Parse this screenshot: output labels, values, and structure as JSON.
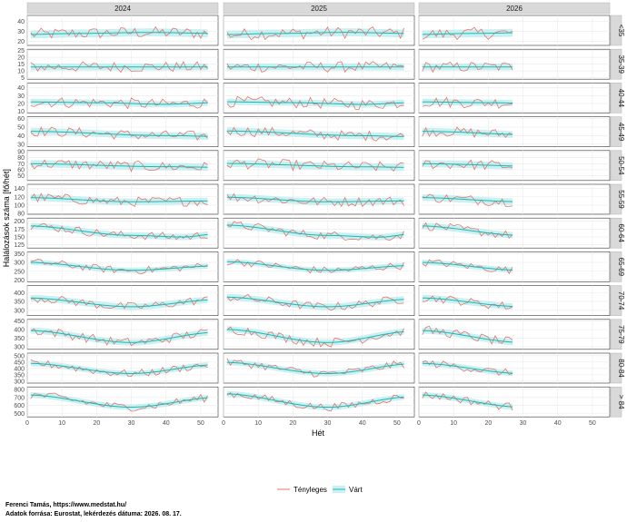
{
  "chart_data": {
    "type": "line",
    "xlabel": "Hét",
    "ylabel": "Halálozások száma [fő/hét]",
    "xlim": [
      0,
      55
    ],
    "xticks": [
      0,
      10,
      20,
      30,
      40,
      50
    ],
    "columns": [
      {
        "label": "2024",
        "weeks": 52
      },
      {
        "label": "2025",
        "weeks": 52
      },
      {
        "label": "2026",
        "weeks": 27
      }
    ],
    "series_names": [
      "Tényleges",
      "Várt"
    ],
    "colors": {
      "actual": "#e8736b",
      "expected": "#1fb5b5",
      "band": "#b8ecec",
      "strip": "#d9d9d9",
      "grid": "#ebebeb"
    },
    "rows": [
      {
        "label": "<35",
        "ylim": [
          16,
          46
        ],
        "yticks": [
          20,
          30,
          40
        ],
        "expected": [
          [
            0,
            27
          ],
          [
            15,
            28
          ],
          [
            35,
            29
          ],
          [
            55,
            28
          ]
        ],
        "band": 4,
        "noise": 6
      },
      {
        "label": "35-39",
        "ylim": [
          4,
          26
        ],
        "yticks": [
          5,
          10,
          15,
          20,
          25
        ],
        "expected": [
          [
            0,
            13
          ],
          [
            55,
            13
          ]
        ],
        "band": 2.5,
        "noise": 4
      },
      {
        "label": "40-44",
        "ylim": [
          8,
          46
        ],
        "yticks": [
          10,
          20,
          30,
          40
        ],
        "expected": [
          [
            0,
            22
          ],
          [
            20,
            21
          ],
          [
            40,
            19
          ],
          [
            55,
            21
          ]
        ],
        "band": 4,
        "noise": 7
      },
      {
        "label": "45-49",
        "ylim": [
          27,
          62
        ],
        "yticks": [
          30,
          40,
          50,
          60
        ],
        "expected": [
          [
            0,
            45
          ],
          [
            40,
            40
          ],
          [
            55,
            39
          ]
        ],
        "band": 4,
        "noise": 6
      },
      {
        "label": "50-54",
        "ylim": [
          42,
          92
        ],
        "yticks": [
          50,
          60,
          70,
          80,
          90
        ],
        "expected": [
          [
            0,
            70
          ],
          [
            40,
            65
          ],
          [
            55,
            64
          ]
        ],
        "band": 6,
        "noise": 9
      },
      {
        "label": "55-59",
        "ylim": [
          78,
          150
        ],
        "yticks": [
          80,
          100,
          120,
          140
        ],
        "expected": [
          [
            0,
            118
          ],
          [
            30,
            108
          ],
          [
            55,
            110
          ]
        ],
        "band": 8,
        "noise": 12
      },
      {
        "label": "60-64",
        "ylim": [
          115,
          210
        ],
        "yticks": [
          125,
          150,
          175,
          200
        ],
        "expected": [
          [
            0,
            185
          ],
          [
            30,
            155
          ],
          [
            45,
            150
          ],
          [
            55,
            160
          ]
        ],
        "band": 10,
        "noise": 14
      },
      {
        "label": "65-69",
        "ylim": [
          190,
          360
        ],
        "yticks": [
          200,
          250,
          300,
          350
        ],
        "expected": [
          [
            0,
            300
          ],
          [
            30,
            255
          ],
          [
            55,
            280
          ]
        ],
        "band": 15,
        "noise": 22
      },
      {
        "label": "70-74",
        "ylim": [
          270,
          440
        ],
        "yticks": [
          300,
          350,
          400
        ],
        "expected": [
          [
            0,
            370
          ],
          [
            30,
            320
          ],
          [
            55,
            360
          ]
        ],
        "band": 18,
        "noise": 25
      },
      {
        "label": "75-79",
        "ylim": [
          285,
          460
        ],
        "yticks": [
          300,
          350,
          400,
          450
        ],
        "expected": [
          [
            0,
            395
          ],
          [
            30,
            325
          ],
          [
            55,
            385
          ]
        ],
        "band": 18,
        "noise": 28
      },
      {
        "label": "80-84",
        "ylim": [
          285,
          520
        ],
        "yticks": [
          300,
          350,
          400,
          450,
          500
        ],
        "expected": [
          [
            0,
            440
          ],
          [
            30,
            360
          ],
          [
            55,
            430
          ]
        ],
        "band": 22,
        "noise": 32
      },
      {
        "label": "> 84",
        "ylim": [
          460,
          830
        ],
        "yticks": [
          500,
          600,
          700,
          800
        ],
        "expected": [
          [
            0,
            730
          ],
          [
            30,
            580
          ],
          [
            55,
            700
          ]
        ],
        "band": 35,
        "noise": 50
      }
    ]
  },
  "caption": {
    "line1": "Ferenci Tamás, https://www.medstat.hu/",
    "line2": "Adatok forrása: Eurostat, lekérdezés dátuma: 2026. 08. 17."
  }
}
